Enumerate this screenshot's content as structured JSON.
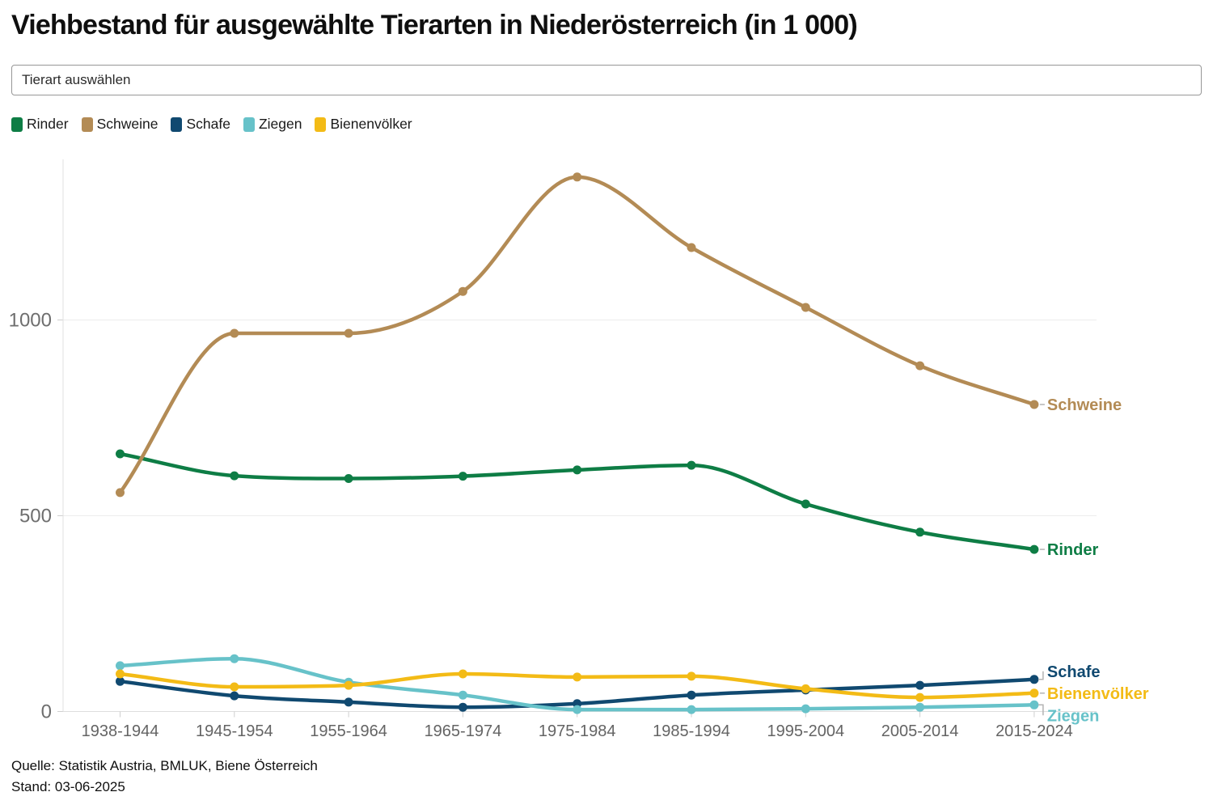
{
  "page": {
    "title": "Viehbestand für ausgewählte Tierarten in Niederösterreich (in 1 000)",
    "dropdown_placeholder": "Tierart auswählen",
    "source_line1": "Quelle: Statistik Austria, BMLUK, Biene Österreich",
    "source_line2": "Stand: 03-06-2025"
  },
  "chart_data": {
    "type": "line",
    "title": "Viehbestand für ausgewählte Tierarten in Niederösterreich (in 1 000)",
    "xlabel": "",
    "ylabel": "",
    "categories": [
      "1938-1944",
      "1945-1954",
      "1955-1964",
      "1965-1974",
      "1975-1984",
      "1985-1994",
      "1995-2004",
      "2005-2014",
      "2015-2024"
    ],
    "yticks": [
      0,
      500,
      1000
    ],
    "ylim": [
      0,
      1410
    ],
    "grid": "horizontal",
    "legend_position": "top-left",
    "series": [
      {
        "name": "Rinder",
        "color": "#0e7d45",
        "values": [
          658,
          602,
          595,
          601,
          617,
          629,
          530,
          458,
          414
        ],
        "label_dy": 0
      },
      {
        "name": "Schweine",
        "color": "#b38b55",
        "values": [
          559,
          966,
          966,
          1073,
          1365,
          1185,
          1032,
          883,
          784
        ],
        "label_dy": 0
      },
      {
        "name": "Schafe",
        "color": "#104970",
        "values": [
          77,
          40,
          24,
          11,
          20,
          42,
          55,
          67,
          82
        ],
        "label_dy": -10
      },
      {
        "name": "Ziegen",
        "color": "#67c2c9",
        "values": [
          117,
          135,
          75,
          42,
          5,
          5,
          7,
          11,
          17
        ],
        "label_dy": 13
      },
      {
        "name": "Bienenvölker",
        "color": "#f3bb16",
        "values": [
          96,
          63,
          67,
          96,
          88,
          90,
          58,
          36,
          47
        ],
        "label_dy": 0
      }
    ]
  }
}
